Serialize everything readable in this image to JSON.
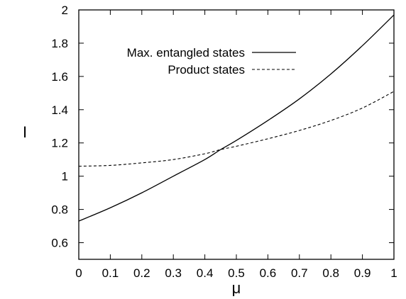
{
  "chart_data": {
    "type": "line",
    "title": "",
    "xlabel": "μ",
    "ylabel": "I",
    "xlim": [
      0,
      1
    ],
    "ylim": [
      0.5,
      2
    ],
    "x_ticks": [
      0,
      0.1,
      0.2,
      0.3,
      0.4,
      0.5,
      0.6,
      0.7,
      0.8,
      0.9,
      1
    ],
    "x_tick_labels": [
      "0",
      "0.1",
      "0.2",
      "0.3",
      "0.4",
      "0.5",
      "0.6",
      "0.7",
      "0.8",
      "0.9",
      "1"
    ],
    "y_ticks": [
      0.6,
      0.8,
      1,
      1.2,
      1.4,
      1.6,
      1.8,
      2
    ],
    "y_tick_labels": [
      "0.6",
      "0.8",
      "1",
      "1.2",
      "1.4",
      "1.6",
      "1.8",
      "2"
    ],
    "grid": false,
    "legend_position": "top-left",
    "x": [
      0,
      0.1,
      0.2,
      0.3,
      0.4,
      0.45,
      0.5,
      0.6,
      0.7,
      0.8,
      0.9,
      1.0
    ],
    "series": [
      {
        "name": "Max. entangled states",
        "style": "solid",
        "values": [
          0.73,
          0.81,
          0.9,
          1.0,
          1.1,
          1.16,
          1.215,
          1.335,
          1.465,
          1.615,
          1.785,
          1.97
        ]
      },
      {
        "name": "Product states",
        "style": "dashed",
        "values": [
          1.06,
          1.065,
          1.08,
          1.1,
          1.135,
          1.16,
          1.18,
          1.225,
          1.275,
          1.335,
          1.41,
          1.51
        ]
      }
    ]
  }
}
